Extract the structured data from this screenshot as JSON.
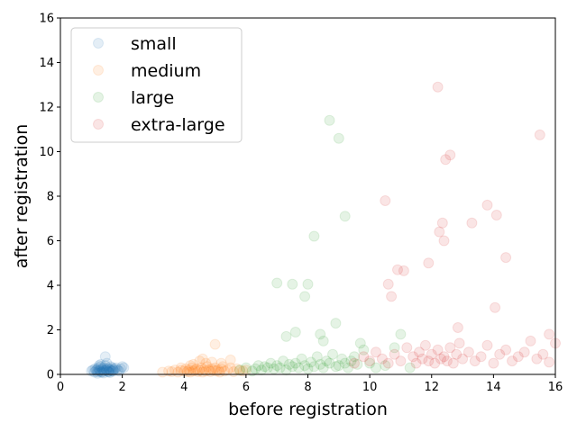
{
  "chart_data": {
    "type": "scatter",
    "xlabel": "before registration",
    "ylabel": "after registration",
    "xlim": [
      0,
      16
    ],
    "ylim": [
      0,
      16
    ],
    "xticks": [
      "0",
      "2",
      "4",
      "6",
      "8",
      "10",
      "12",
      "14",
      "16"
    ],
    "yticks": [
      "0",
      "2",
      "4",
      "6",
      "8",
      "10",
      "12",
      "14",
      "16"
    ],
    "grid": false,
    "legend_position": "top-left",
    "marker_alpha": 0.12,
    "series": [
      {
        "name": "small",
        "color": "#1f77b4",
        "x": [
          1.0,
          1.05,
          1.1,
          1.12,
          1.15,
          1.18,
          1.2,
          1.22,
          1.25,
          1.28,
          1.3,
          1.32,
          1.35,
          1.38,
          1.4,
          1.42,
          1.45,
          1.48,
          1.5,
          1.52,
          1.55,
          1.58,
          1.6,
          1.62,
          1.65,
          1.68,
          1.7,
          1.72,
          1.75,
          1.8,
          1.85,
          1.9,
          1.95,
          2.0,
          2.05,
          1.45,
          1.5,
          1.3,
          1.2,
          1.6,
          1.35,
          1.55,
          1.25,
          1.4,
          1.7
        ],
        "y": [
          0.15,
          0.2,
          0.1,
          0.25,
          0.18,
          0.22,
          0.12,
          0.3,
          0.2,
          0.15,
          0.35,
          0.1,
          0.25,
          0.2,
          0.3,
          0.15,
          0.4,
          0.22,
          0.18,
          0.28,
          0.12,
          0.25,
          0.2,
          0.35,
          0.15,
          0.3,
          0.22,
          0.18,
          0.25,
          0.3,
          0.2,
          0.15,
          0.25,
          0.35,
          0.3,
          0.8,
          0.5,
          0.45,
          0.05,
          0.08,
          0.1,
          0.12,
          0.4,
          0.06,
          0.14
        ]
      },
      {
        "name": "medium",
        "color": "#ff7f0e",
        "x": [
          3.3,
          3.5,
          3.6,
          3.7,
          3.8,
          3.9,
          4.0,
          4.05,
          4.1,
          4.15,
          4.2,
          4.25,
          4.3,
          4.35,
          4.4,
          4.45,
          4.5,
          4.55,
          4.6,
          4.65,
          4.7,
          4.75,
          4.8,
          4.85,
          4.9,
          4.95,
          5.0,
          5.05,
          5.1,
          5.15,
          5.2,
          5.25,
          5.3,
          5.4,
          5.5,
          5.6,
          5.7,
          5.8,
          5.9,
          6.0,
          4.3,
          4.7,
          5.0,
          4.5,
          4.9,
          5.5,
          4.2,
          5.2,
          3.9,
          4.6
        ],
        "y": [
          0.1,
          0.15,
          0.12,
          0.2,
          0.1,
          0.18,
          0.15,
          0.25,
          0.12,
          0.2,
          0.1,
          0.3,
          0.15,
          0.2,
          0.25,
          0.12,
          0.18,
          0.3,
          0.1,
          0.22,
          0.15,
          0.35,
          0.2,
          0.12,
          0.25,
          0.18,
          0.3,
          0.15,
          0.2,
          0.1,
          0.25,
          0.35,
          0.15,
          0.2,
          0.3,
          0.12,
          0.25,
          0.18,
          0.15,
          0.2,
          0.45,
          0.5,
          1.35,
          0.6,
          0.55,
          0.65,
          0.4,
          0.5,
          0.3,
          0.7
        ]
      },
      {
        "name": "large",
        "color": "#2ca02c",
        "x": [
          5.8,
          6.0,
          6.2,
          6.3,
          6.4,
          6.5,
          6.6,
          6.7,
          6.8,
          6.9,
          7.0,
          7.1,
          7.2,
          7.3,
          7.4,
          7.5,
          7.6,
          7.7,
          7.8,
          7.9,
          8.0,
          8.1,
          8.2,
          8.3,
          8.4,
          8.5,
          8.6,
          8.7,
          8.8,
          8.9,
          9.0,
          9.1,
          9.2,
          9.3,
          9.4,
          9.5,
          9.6,
          9.8,
          10.0,
          10.2,
          10.5,
          11.0,
          11.3,
          7.0,
          7.5,
          7.9,
          8.0,
          8.2,
          8.7,
          9.0,
          9.2,
          8.9,
          7.6,
          7.3,
          8.5,
          8.4,
          9.7,
          10.8
        ],
        "y": [
          0.2,
          0.3,
          0.15,
          0.25,
          0.4,
          0.2,
          0.35,
          0.3,
          0.5,
          0.25,
          0.4,
          0.3,
          0.6,
          0.2,
          0.45,
          0.35,
          0.5,
          0.3,
          0.7,
          0.4,
          0.25,
          0.55,
          0.35,
          0.8,
          0.45,
          0.3,
          0.6,
          0.5,
          0.9,
          0.35,
          0.4,
          0.7,
          0.5,
          0.3,
          0.6,
          0.8,
          0.45,
          1.1,
          0.5,
          0.3,
          0.4,
          1.8,
          0.3,
          4.1,
          4.05,
          3.5,
          4.05,
          6.2,
          11.4,
          10.6,
          7.1,
          2.3,
          1.9,
          1.7,
          1.5,
          1.8,
          1.4,
          1.2
        ]
      },
      {
        "name": "extra-large",
        "color": "#d62728",
        "x": [
          9.5,
          9.8,
          10.0,
          10.2,
          10.4,
          10.6,
          10.8,
          11.0,
          11.2,
          11.4,
          11.5,
          11.6,
          11.7,
          11.8,
          11.9,
          12.0,
          12.1,
          12.2,
          12.3,
          12.4,
          12.5,
          12.6,
          12.7,
          12.8,
          12.9,
          13.0,
          13.2,
          13.4,
          13.6,
          13.8,
          14.0,
          14.2,
          14.4,
          14.6,
          14.8,
          15.0,
          15.2,
          15.4,
          15.6,
          15.8,
          16.0,
          12.2,
          15.5,
          12.6,
          12.45,
          10.5,
          13.8,
          14.1,
          13.3,
          12.35,
          12.25,
          12.4,
          14.4,
          10.9,
          11.1,
          10.6,
          11.9,
          10.7,
          14.05,
          12.85,
          15.8
        ],
        "y": [
          0.5,
          0.8,
          0.6,
          1.0,
          0.7,
          0.5,
          0.9,
          0.6,
          1.2,
          0.8,
          0.5,
          1.0,
          0.7,
          1.3,
          0.6,
          0.9,
          0.5,
          1.1,
          0.7,
          0.8,
          0.6,
          1.2,
          0.5,
          0.9,
          1.4,
          0.7,
          1.0,
          0.6,
          0.8,
          1.3,
          0.5,
          0.9,
          1.1,
          0.6,
          0.8,
          1.0,
          1.5,
          0.7,
          0.9,
          1.8,
          1.4,
          12.9,
          10.75,
          9.85,
          9.65,
          7.8,
          7.6,
          7.15,
          6.8,
          6.8,
          6.4,
          6.0,
          5.25,
          4.7,
          4.65,
          4.05,
          5.0,
          3.5,
          3.0,
          2.1,
          0.55
        ]
      }
    ]
  }
}
